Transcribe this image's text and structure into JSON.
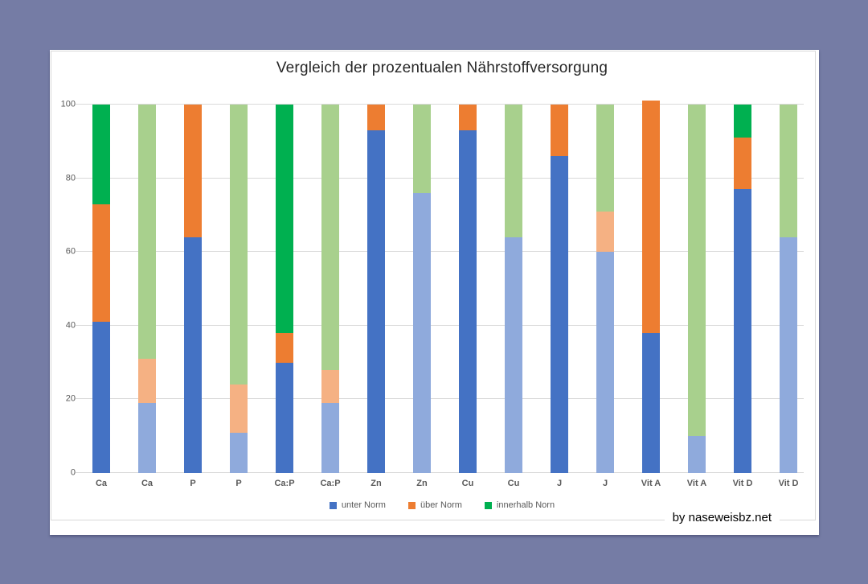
{
  "credit": "by naseweisbz.net",
  "colors": {
    "background": "#757CA5",
    "panel": "#FFFFFF",
    "gridline": "#D9D9D9",
    "axis_text": "#595959",
    "title_text": "#262626",
    "credit_text": "#000000"
  },
  "chart_data": {
    "type": "bar",
    "stacked": true,
    "title": "Vergleich der prozentualen Nährstoffversorgung",
    "categories": [
      "Ca",
      "Ca",
      "P",
      "P",
      "Ca:P",
      "Ca:P",
      "Zn",
      "Zn",
      "Cu",
      "Cu",
      "J",
      "J",
      "Vit A",
      "Vit A",
      "Vit D",
      "Vit D"
    ],
    "series": [
      {
        "name": "unter Norm",
        "color_key": "blue",
        "values": [
          41,
          19,
          64,
          11,
          30,
          19,
          93,
          76,
          93,
          64,
          86,
          60,
          38,
          10,
          77,
          64
        ]
      },
      {
        "name": "über Norm",
        "color_key": "orange",
        "values": [
          32,
          12,
          36,
          13,
          8,
          9,
          7,
          0,
          7,
          0,
          14,
          11,
          63,
          0,
          14,
          0
        ]
      },
      {
        "name": "innerhalb Norn",
        "color_key": "green",
        "values": [
          27,
          69,
          0,
          76,
          62,
          72,
          0,
          24,
          0,
          36,
          0,
          29,
          0,
          90,
          9,
          36
        ]
      }
    ],
    "palette": {
      "primary": {
        "blue": "#4472C4",
        "orange": "#ED7D31",
        "green": "#00B050"
      },
      "pastel": {
        "blue": "#8FAADC",
        "orange": "#F5B183",
        "green": "#A8D08D"
      }
    },
    "pastel_bar_indices": [
      1,
      3,
      5,
      7,
      9,
      11,
      13,
      15
    ],
    "y_ticks": [
      0,
      20,
      40,
      60,
      80,
      100
    ],
    "ylim": [
      0,
      100
    ],
    "grid": "horizontal",
    "legend_position": "bottom"
  }
}
